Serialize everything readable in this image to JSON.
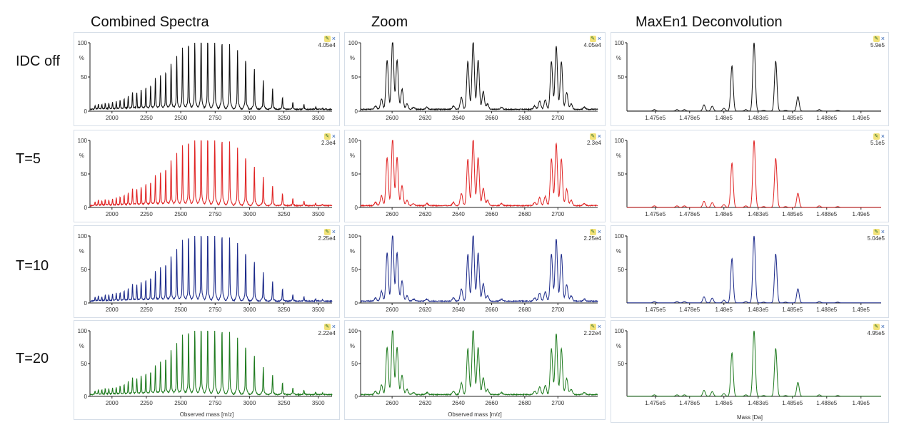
{
  "column_titles": [
    "Combined Spectra",
    "Zoom",
    "MaxEn1 Deconvolution"
  ],
  "row_labels": [
    "IDC off",
    "T=5",
    "T=10",
    "T=20"
  ],
  "row_colors": [
    "#111111",
    "#e02424",
    "#1c2a8a",
    "#1e7a1e"
  ],
  "chart_data": [
    {
      "type": "line",
      "title": "Combined Spectra",
      "xlabel": "Observed mass [m/z]",
      "ylabel": "%",
      "xlim": [
        1840,
        3600
      ],
      "ylim": [
        0,
        100
      ],
      "xticks": [
        2000,
        2250,
        2500,
        2750,
        3000,
        3250,
        3500
      ],
      "yticks": [
        0,
        50,
        100
      ],
      "peak_width": 2.2,
      "peaks": [
        [
          1877,
          5
        ],
        [
          1901,
          7
        ],
        [
          1926,
          6
        ],
        [
          1951,
          8
        ],
        [
          1977,
          8
        ],
        [
          2004,
          9
        ],
        [
          2031,
          10
        ],
        [
          2059,
          12
        ],
        [
          2088,
          14
        ],
        [
          2118,
          17
        ],
        [
          2149,
          22
        ],
        [
          2180,
          22
        ],
        [
          2212,
          25
        ],
        [
          2246,
          29
        ],
        [
          2281,
          32
        ],
        [
          2316,
          41
        ],
        [
          2353,
          44
        ],
        [
          2391,
          50
        ],
        [
          2430,
          60
        ],
        [
          2471,
          68
        ],
        [
          2513,
          81
        ],
        [
          2557,
          88
        ],
        [
          2602,
          92
        ],
        [
          2648,
          100
        ],
        [
          2696,
          94
        ],
        [
          2747,
          95
        ],
        [
          2800,
          90
        ],
        [
          2855,
          83
        ],
        [
          2913,
          75
        ],
        [
          2972,
          66
        ],
        [
          3035,
          52
        ],
        [
          3100,
          37
        ],
        [
          3168,
          26
        ],
        [
          3240,
          16
        ],
        [
          3315,
          9
        ],
        [
          3396,
          6
        ],
        [
          3481,
          3
        ],
        [
          3531,
          2
        ]
      ],
      "intensity_labels": [
        "4.05e4",
        "2.3e4",
        "2.25e4",
        "2.22e4"
      ]
    },
    {
      "type": "line",
      "title": "Zoom",
      "xlabel": "Observed mass [m/z]",
      "ylabel": "%",
      "xlim": [
        2581,
        2724
      ],
      "ylim": [
        0,
        100
      ],
      "xticks": [
        2600,
        2620,
        2640,
        2660,
        2680,
        2700
      ],
      "yticks": [
        0,
        50,
        100
      ],
      "peak_width": 0.7,
      "peaks": [
        [
          2590,
          5
        ],
        [
          2593.6,
          15
        ],
        [
          2597,
          72
        ],
        [
          2600.3,
          100
        ],
        [
          2603,
          72
        ],
        [
          2606,
          30
        ],
        [
          2609,
          8
        ],
        [
          2613,
          3
        ],
        [
          2621,
          3
        ],
        [
          2637,
          5
        ],
        [
          2641.8,
          18
        ],
        [
          2645.7,
          70
        ],
        [
          2648.9,
          100
        ],
        [
          2651.9,
          72
        ],
        [
          2655,
          26
        ],
        [
          2657.6,
          8
        ],
        [
          2666,
          3
        ],
        [
          2686,
          5
        ],
        [
          2689,
          12
        ],
        [
          2692.4,
          14
        ],
        [
          2696.1,
          70
        ],
        [
          2699,
          93
        ],
        [
          2702.1,
          70
        ],
        [
          2705.3,
          25
        ],
        [
          2708,
          8
        ],
        [
          2716,
          3
        ]
      ],
      "intensity_labels": [
        "4.05e4",
        "2.3e4",
        "2.25e4",
        "2.22e4"
      ]
    },
    {
      "type": "line",
      "title": "MaxEn1 Deconvolution",
      "xlabel": "Mass [Da]",
      "ylabel": "%",
      "xlim": [
        147293,
        149147
      ],
      "ylim": [
        0,
        100
      ],
      "xticks": [
        147500,
        147750,
        148000,
        148250,
        148500,
        148750,
        149000
      ],
      "xtick_labels": [
        "1.475e5",
        "1.478e5",
        "1.48e5",
        "1.483e5",
        "1.485e5",
        "1.488e5",
        "1.49e5"
      ],
      "yticks": [
        50,
        100
      ],
      "peak_width": 9,
      "peaks": [
        [
          147493,
          2
        ],
        [
          147658,
          2
        ],
        [
          147712,
          2
        ],
        [
          147855,
          9
        ],
        [
          147915,
          7
        ],
        [
          148000,
          4
        ],
        [
          148059,
          66
        ],
        [
          148160,
          2
        ],
        [
          148220,
          100
        ],
        [
          148290,
          1
        ],
        [
          148378,
          73
        ],
        [
          148450,
          1
        ],
        [
          148540,
          21
        ],
        [
          148696,
          2
        ],
        [
          148830,
          1
        ]
      ],
      "intensity_labels": [
        "5.9e5",
        "5.1e5",
        "5.04e5",
        "4.95e5"
      ]
    }
  ],
  "icons": {
    "pin": "pin-icon",
    "close": "close-icon"
  }
}
